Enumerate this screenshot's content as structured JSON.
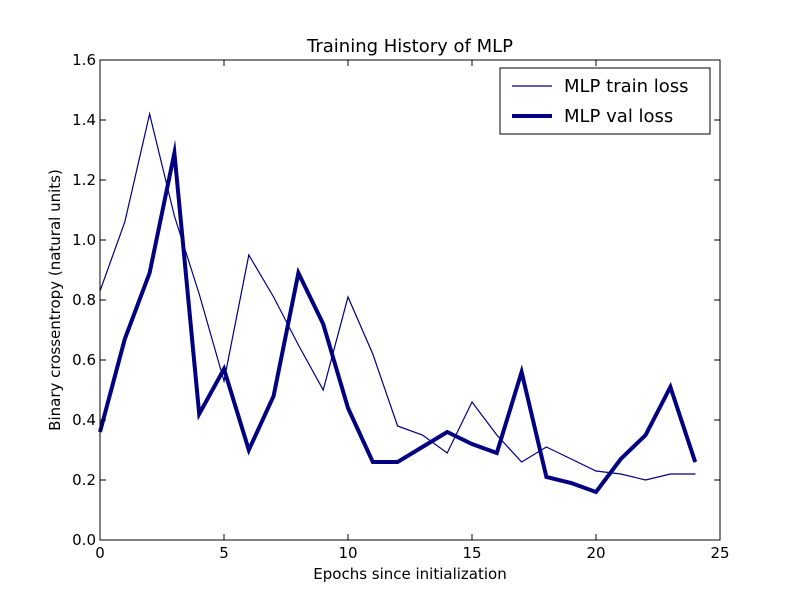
{
  "chart_data": {
    "type": "line",
    "title": "Training History of MLP",
    "xlabel": "Epochs since initialization",
    "ylabel": "Binary crossentropy (natural units)",
    "xlim": [
      0,
      25
    ],
    "ylim": [
      0,
      1.6
    ],
    "xticks": [
      "0",
      "5",
      "10",
      "15",
      "20",
      "25"
    ],
    "yticks": [
      "0.0",
      "0.2",
      "0.4",
      "0.6",
      "0.8",
      "1.0",
      "1.2",
      "1.4",
      "1.6"
    ],
    "grid": false,
    "legend_position": "top-right",
    "x": [
      0,
      1,
      2,
      3,
      4,
      5,
      6,
      7,
      8,
      9,
      10,
      11,
      12,
      13,
      14,
      15,
      16,
      17,
      18,
      19,
      20,
      21,
      22,
      23,
      24
    ],
    "series": [
      {
        "name": "MLP train loss",
        "color": "#000080",
        "line_style": "thin",
        "values": [
          0.83,
          1.06,
          1.42,
          1.08,
          0.82,
          0.53,
          0.95,
          0.81,
          0.65,
          0.5,
          0.81,
          0.62,
          0.38,
          0.35,
          0.29,
          0.46,
          0.35,
          0.26,
          0.31,
          0.27,
          0.23,
          0.22,
          0.2,
          0.22,
          0.22
        ]
      },
      {
        "name": "MLP val loss",
        "color": "#000080",
        "line_style": "thick",
        "values": [
          0.36,
          0.67,
          0.89,
          1.29,
          0.42,
          0.57,
          0.3,
          0.48,
          0.89,
          0.72,
          0.44,
          0.26,
          0.26,
          0.31,
          0.36,
          0.32,
          0.29,
          0.56,
          0.21,
          0.19,
          0.16,
          0.27,
          0.35,
          0.51,
          0.26
        ]
      }
    ]
  }
}
